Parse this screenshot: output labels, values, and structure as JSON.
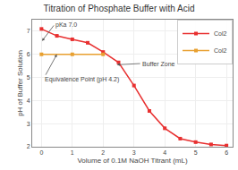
{
  "chart_data": {
    "type": "line",
    "title": "Titration of Phosphate Buffer with Acid",
    "xlabel": "Volume of 0.1M NaOH Titrant (mL)",
    "ylabel": "pH of Buffer Solution",
    "series": [
      {
        "name": "Col2",
        "color": "#e83030",
        "marker": "square",
        "x": [
          0,
          0.5,
          1,
          1.5,
          2,
          2.5,
          3,
          3.5,
          4,
          4.5,
          5,
          5.5,
          6
        ],
        "values": [
          7.1,
          6.8,
          6.65,
          6.5,
          6.1,
          5.65,
          4.65,
          3.55,
          2.8,
          2.35,
          2.2,
          2.1,
          2.05
        ]
      },
      {
        "name": "Col2",
        "color": "#e8a030",
        "marker": "square",
        "x": [
          0,
          1,
          2
        ],
        "values": [
          6.0,
          6.0,
          6.0
        ]
      }
    ],
    "annotations": [
      "Equivalence Point (pH 4.2)",
      "Buffer Zone",
      "pKa 7.0"
    ],
    "xlim": [
      -0.3,
      6.2
    ],
    "ylim": [
      2,
      7.5
    ],
    "xticks": [
      0,
      1,
      2,
      3,
      4,
      5,
      6
    ],
    "yticks": [
      2,
      3,
      4,
      5,
      6,
      7
    ],
    "grid": true,
    "legend": "upper right"
  }
}
